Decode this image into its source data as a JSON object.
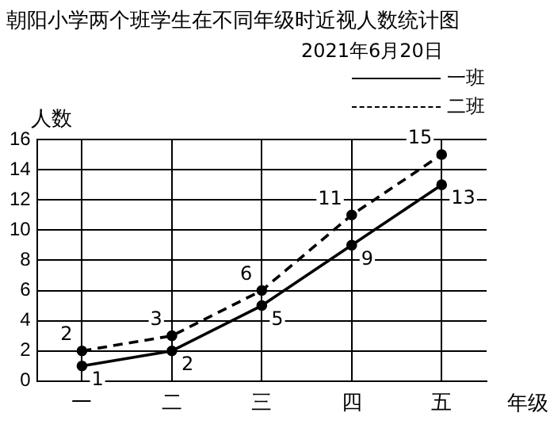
{
  "chart_data": {
    "type": "line",
    "title": "朝阳小学两个班学生在不同年级时近视人数统计图",
    "subtitle": "2021年6月20日",
    "xlabel": "年级",
    "ylabel": "人数",
    "categories": [
      "一",
      "二",
      "三",
      "四",
      "五"
    ],
    "series": [
      {
        "name": "一班",
        "color": "#000000",
        "values": [
          1,
          2,
          5,
          9,
          13
        ],
        "line_style": "solid"
      },
      {
        "name": "二班",
        "color": "#000000",
        "values": [
          2,
          3,
          6,
          11,
          15
        ],
        "line_style": "dashed"
      }
    ],
    "ylim": [
      0,
      16
    ],
    "yticks": [
      0,
      2,
      4,
      6,
      8,
      10,
      12,
      14,
      16
    ],
    "grid": true,
    "legend": "top right",
    "marker": "circle",
    "data_labels": true
  }
}
